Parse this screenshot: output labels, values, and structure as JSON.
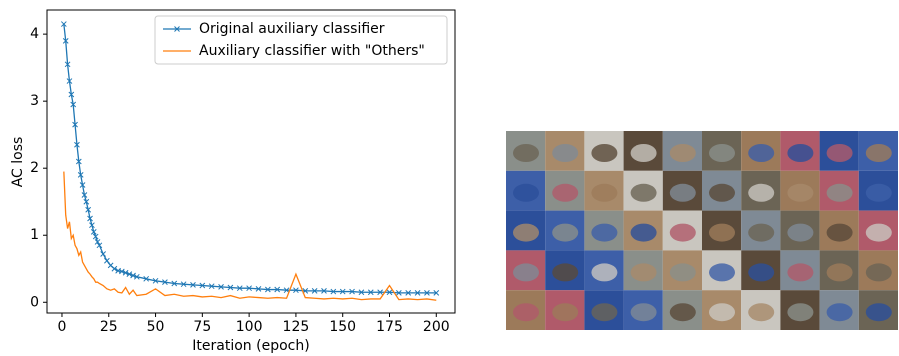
{
  "chart_data": {
    "type": "line",
    "x_label": "Iteration (epoch)",
    "y_label": "AC loss",
    "x": [
      1,
      2,
      3,
      4,
      5,
      6,
      7,
      8,
      9,
      10,
      11,
      12,
      13,
      14,
      15,
      16,
      17,
      18,
      19,
      20,
      22,
      24,
      26,
      28,
      30,
      32,
      34,
      36,
      38,
      40,
      45,
      50,
      55,
      60,
      65,
      70,
      75,
      80,
      85,
      90,
      95,
      100,
      105,
      110,
      115,
      120,
      125,
      130,
      135,
      140,
      145,
      150,
      155,
      160,
      165,
      170,
      175,
      180,
      185,
      190,
      195,
      200
    ],
    "series": [
      {
        "name": "Original auxiliary classifier",
        "color": "#1f77b4",
        "marker": "x",
        "values": [
          4.15,
          3.9,
          3.55,
          3.3,
          3.1,
          2.95,
          2.65,
          2.35,
          2.1,
          1.9,
          1.75,
          1.6,
          1.5,
          1.38,
          1.25,
          1.15,
          1.05,
          0.98,
          0.9,
          0.85,
          0.72,
          0.62,
          0.55,
          0.5,
          0.47,
          0.46,
          0.44,
          0.42,
          0.4,
          0.38,
          0.35,
          0.32,
          0.3,
          0.28,
          0.27,
          0.26,
          0.25,
          0.24,
          0.23,
          0.22,
          0.21,
          0.21,
          0.2,
          0.19,
          0.19,
          0.18,
          0.18,
          0.17,
          0.17,
          0.17,
          0.16,
          0.16,
          0.16,
          0.15,
          0.15,
          0.15,
          0.15,
          0.14,
          0.14,
          0.14,
          0.14,
          0.14
        ]
      },
      {
        "name": "Auxiliary classifier with \"Others\"",
        "color": "#ff7f0e",
        "values": [
          1.95,
          1.3,
          1.1,
          1.2,
          0.95,
          1.0,
          0.85,
          0.8,
          0.7,
          0.75,
          0.6,
          0.55,
          0.5,
          0.45,
          0.42,
          0.38,
          0.35,
          0.3,
          0.3,
          0.28,
          0.25,
          0.2,
          0.18,
          0.2,
          0.15,
          0.14,
          0.22,
          0.12,
          0.18,
          0.1,
          0.12,
          0.2,
          0.1,
          0.12,
          0.09,
          0.1,
          0.08,
          0.09,
          0.07,
          0.1,
          0.06,
          0.08,
          0.07,
          0.06,
          0.07,
          0.06,
          0.42,
          0.07,
          0.06,
          0.05,
          0.06,
          0.05,
          0.06,
          0.04,
          0.05,
          0.05,
          0.25,
          0.04,
          0.05,
          0.04,
          0.05,
          0.03
        ]
      }
    ],
    "xlim": [
      -8,
      210
    ],
    "ylim": [
      -0.16,
      4.36
    ],
    "xticks": [
      0,
      25,
      50,
      75,
      100,
      125,
      150,
      175,
      200
    ],
    "yticks": [
      0,
      1,
      2,
      3,
      4
    ],
    "legend": "upper right"
  }
}
